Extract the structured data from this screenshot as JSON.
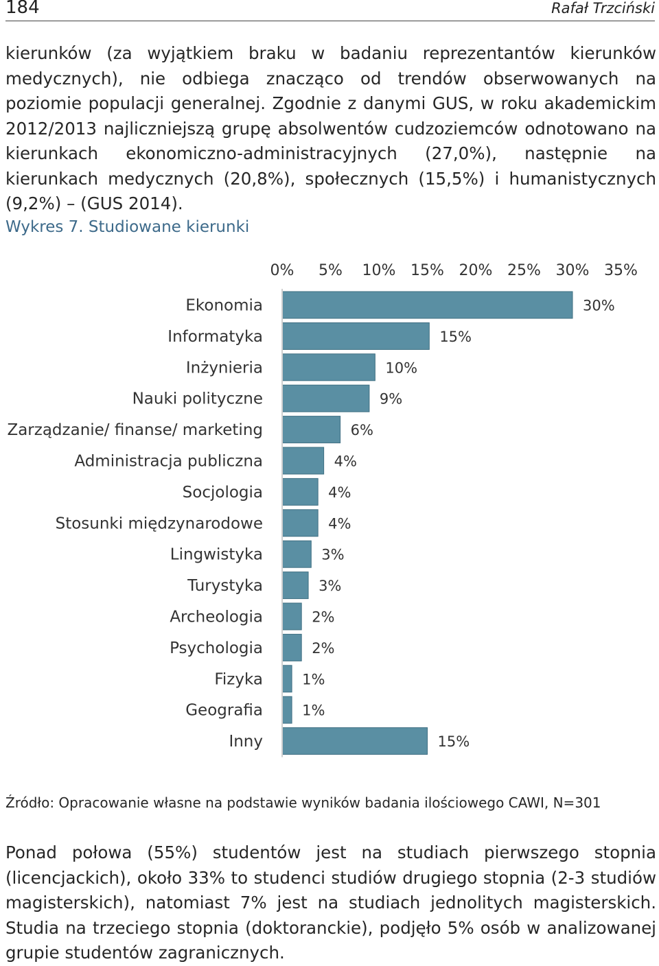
{
  "header": {
    "page_number": "184",
    "author": "Rafał Trzciński"
  },
  "paragraphs": {
    "top": "kierunków (za wyjątkiem braku w badaniu reprezentantów kierunków medycznych), nie odbiega znacząco od trendów obserwowanych na poziomie populacji generalnej. Zgodnie z danymi GUS, w roku akademickim 2012/2013 najliczniejszą grupę absolwentów cudzoziemców odnotowano na kierunkach ekonomiczno-administracyjnych (27,0%), następnie na kierunkach medycznych (20,8%), społecznych (15,5%) i humanistycznych (9,2%) – (GUS 2014).",
    "bottom": "Ponad połowa (55%) studentów jest na studiach pierwszego stopnia (licencjackich), około 33% to studenci studiów drugiego stopnia (2-3 studiów magisterskich), natomiast 7% jest na studiach jednolitych magisterskich. Studia na trzeciego stopnia (doktoranckie), podjęło 5% osób w analizowanej grupie studentów zagranicznych."
  },
  "figure": {
    "caption": "Wykres 7. Studiowane kierunki",
    "source": "Źródło: Opracowanie własne na podstawie wyników badania ilościowego CAWI, N=301"
  },
  "chart_data": {
    "type": "bar",
    "orientation": "horizontal",
    "title": "",
    "xlabel": "",
    "ylabel": "",
    "xlim": [
      0,
      35
    ],
    "x_ticks": [
      "0%",
      "5%",
      "10%",
      "15%",
      "20%",
      "25%",
      "30%",
      "35%"
    ],
    "x_tick_values": [
      0,
      5,
      10,
      15,
      20,
      25,
      30,
      35
    ],
    "axis_position": "top",
    "grid": false,
    "legend": "none",
    "bar_color": "#5a8fa3",
    "categories": [
      "Ekonomia",
      "Informatyka",
      "Inżynieria",
      "Nauki polityczne",
      "Zarządzanie/ finanse/ marketing",
      "Administracja publiczna",
      "Socjologia",
      "Stosunki międzynarodowe",
      "Lingwistyka",
      "Turystyka",
      "Archeologia",
      "Psychologia",
      "Fizyka",
      "Geografia",
      "Inny"
    ],
    "values": [
      30,
      15.2,
      9.6,
      9,
      6,
      4.3,
      3.7,
      3.7,
      3,
      2.7,
      2,
      2,
      1,
      1,
      15
    ],
    "data_labels": [
      "30%",
      "15%",
      "10%",
      "9%",
      "6%",
      "4%",
      "4%",
      "4%",
      "3%",
      "3%",
      "2%",
      "2%",
      "1%",
      "1%",
      "15%"
    ]
  }
}
